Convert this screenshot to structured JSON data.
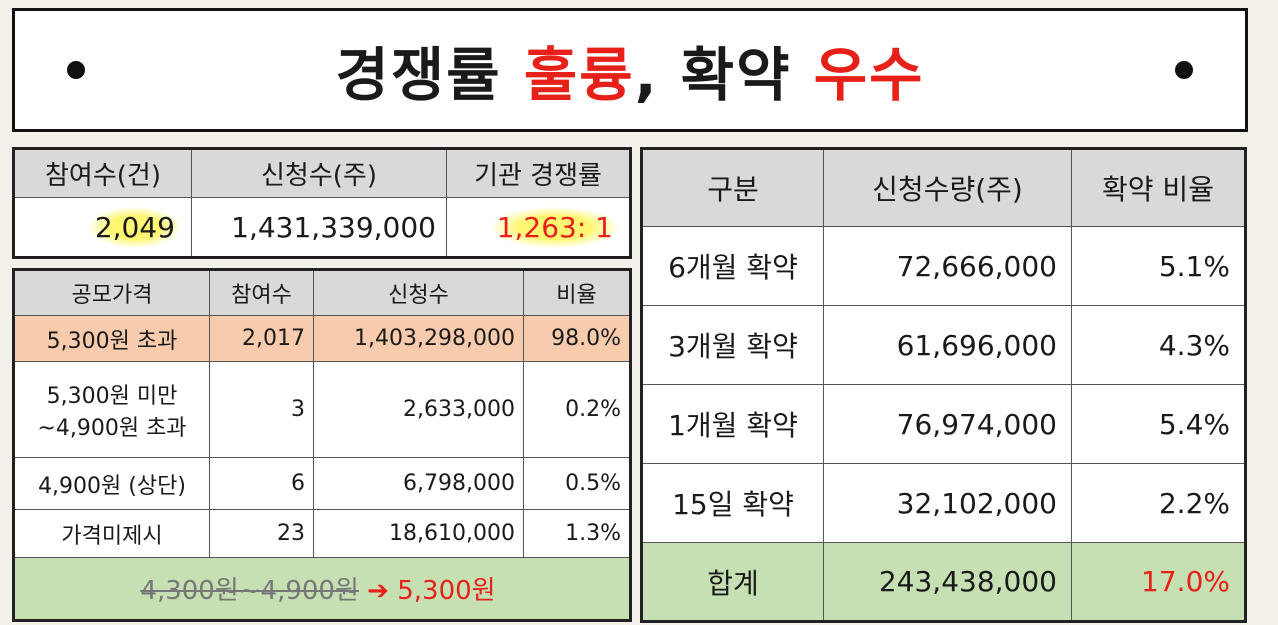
{
  "banner": {
    "part1": "경쟁률 ",
    "part2": "훌륭",
    "part3": ", 확약 ",
    "part4": "우수"
  },
  "summary": {
    "headers": [
      "참여수(건)",
      "신청수(주)",
      "기관 경쟁률"
    ],
    "values": [
      "2,049",
      "1,431,339,000",
      "1,263: 1"
    ]
  },
  "price_table": {
    "headers": [
      "공모가격",
      "참여수",
      "신청수",
      "비율"
    ],
    "rows": [
      {
        "band": "5,300원 초과",
        "count": "2,017",
        "shares": "1,403,298,000",
        "ratio": "98.0%"
      },
      {
        "band_line1": "5,300원 미만",
        "band_line2": "~4,900원 초과",
        "count": "3",
        "shares": "2,633,000",
        "ratio": "0.2%"
      },
      {
        "band": "4,900원 (상단)",
        "count": "6",
        "shares": "6,798,000",
        "ratio": "0.5%"
      },
      {
        "band": "가격미제시",
        "count": "23",
        "shares": "18,610,000",
        "ratio": "1.3%"
      }
    ],
    "footer": {
      "old": "4,300원~4,900원",
      "arrow": "➔",
      "new": "5,300원"
    }
  },
  "lockup_table": {
    "headers": [
      "구분",
      "신청수량(주)",
      "확약 비율"
    ],
    "rows": [
      {
        "label": "6개월 확약",
        "shares": "72,666,000",
        "ratio": "5.1%"
      },
      {
        "label": "3개월 확약",
        "shares": "61,696,000",
        "ratio": "4.3%"
      },
      {
        "label": "1개월 확약",
        "shares": "76,974,000",
        "ratio": "5.4%"
      },
      {
        "label": "15일 확약",
        "shares": "32,102,000",
        "ratio": "2.2%"
      }
    ],
    "total": {
      "label": "합계",
      "shares": "243,438,000",
      "ratio": "17.0%"
    }
  },
  "colors": {
    "accent_red": "#e8201a",
    "highlight_orange": "#f8cbad",
    "highlight_green": "#c6e0b4",
    "header_gray": "#d9d9d9"
  }
}
